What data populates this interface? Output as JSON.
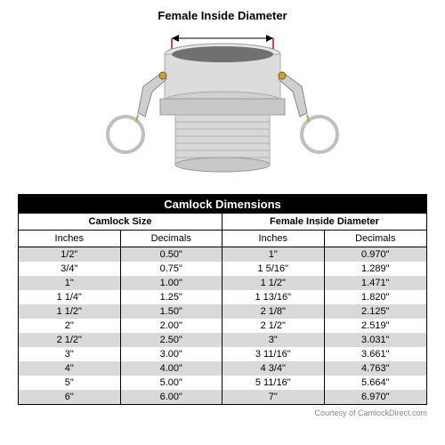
{
  "diagram": {
    "title": "Female Inside Diameter"
  },
  "table": {
    "title": "Camlock Dimensions",
    "group_headers": [
      "Camlock Size",
      "Female Inside Diameter"
    ],
    "sub_headers": [
      "Inches",
      "Decimals",
      "Inches",
      "Decimals"
    ],
    "rows": [
      [
        "1/2\"",
        "0.50\"",
        "1\"",
        "0.970\""
      ],
      [
        "3/4\"",
        "0.75\"",
        "1 5/16\"",
        "1.289\""
      ],
      [
        "1\"",
        "1.00\"",
        "1 1/2\"",
        "1.471\""
      ],
      [
        "1 1/4\"",
        "1.25\"",
        "1 13/16\"",
        "1.820\""
      ],
      [
        "1 1/2\"",
        "1.50\"",
        "2 1/8\"",
        "2.125\""
      ],
      [
        "2\"",
        "2.00\"",
        "2 1/2\"",
        "2.519\""
      ],
      [
        "2 1/2\"",
        "2.50\"",
        "3\"",
        "3.031\""
      ],
      [
        "3\"",
        "3.00\"",
        "3 11/16\"",
        "3.661\""
      ],
      [
        "4\"",
        "4.00\"",
        "4 3/4\"",
        "4.763\""
      ],
      [
        "5\"",
        "5.00\"",
        "5 11/16\"",
        "5.664\""
      ],
      [
        "6\"",
        "6.00\"",
        "7\"",
        "6.970\""
      ]
    ],
    "colors": {
      "title_bg": "#000000",
      "title_fg": "#ffffff",
      "row_alt_bg": "#d9d9d9",
      "row_bg": "#ffffff",
      "border": "#000000"
    }
  },
  "courtesy": "Courtesy of CamlockDirect.com"
}
